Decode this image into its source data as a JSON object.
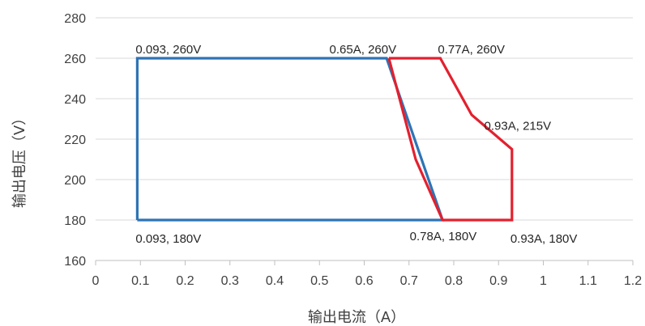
{
  "chart_data": {
    "type": "line",
    "xlabel": "输出电流（A）",
    "ylabel": "输出电压（V）",
    "xlim": [
      0,
      1.2
    ],
    "ylim": [
      160,
      280
    ],
    "x_ticks": [
      "0",
      "0.1",
      "0.2",
      "0.3",
      "0.4",
      "0.5",
      "0.6",
      "0.7",
      "0.8",
      "0.9",
      "1",
      "1.1",
      "1.2"
    ],
    "y_ticks": [
      "160",
      "180",
      "200",
      "220",
      "240",
      "260",
      "280"
    ],
    "grid": "horizontal",
    "series": [
      {
        "color": "#2E74B5",
        "points": [
          [
            0.093,
            180
          ],
          [
            0.093,
            260
          ],
          [
            0.65,
            260
          ],
          [
            0.775,
            180
          ],
          [
            0.093,
            180
          ]
        ]
      },
      {
        "color": "#E3202E",
        "points": [
          [
            0.655,
            260
          ],
          [
            0.77,
            260
          ],
          [
            0.84,
            232
          ],
          [
            0.93,
            215
          ],
          [
            0.93,
            180
          ],
          [
            0.775,
            180
          ],
          [
            0.715,
            210
          ],
          [
            0.655,
            260
          ]
        ]
      }
    ],
    "annotations": [
      {
        "text": "0.093, 260V",
        "x": 0.093,
        "y": 260,
        "pos": "above-right"
      },
      {
        "text": "0.65A, 260V",
        "x": 0.65,
        "y": 260,
        "pos": "above-left"
      },
      {
        "text": "0.77A, 260V",
        "x": 0.77,
        "y": 260,
        "pos": "above-left-of-right"
      },
      {
        "text": "0.93A, 215V",
        "x": 0.93,
        "y": 215,
        "pos": "above"
      },
      {
        "text": "0.093, 180V",
        "x": 0.093,
        "y": 180,
        "pos": "below-right"
      },
      {
        "text": "0.78A, 180V",
        "x": 0.78,
        "y": 180,
        "pos": "below-left"
      },
      {
        "text": "0.93A, 180V",
        "x": 0.93,
        "y": 180,
        "pos": "below-right"
      }
    ]
  }
}
